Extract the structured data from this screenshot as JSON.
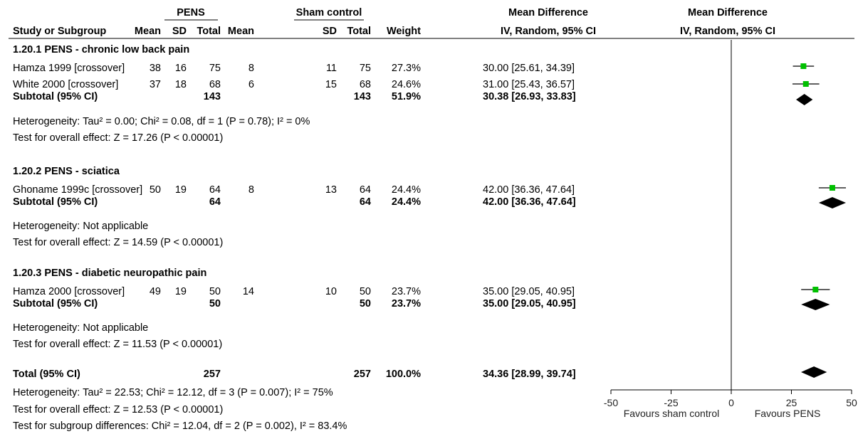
{
  "header": {
    "group1": "PENS",
    "group2": "Sham control",
    "md_title_1": "Mean Difference",
    "md_title_2": "Mean Difference",
    "col_study": "Study or Subgroup",
    "col_mean1": "Mean",
    "col_sd1": "SD",
    "col_total1": "Total",
    "col_mean2": "Mean",
    "col_sd2": "SD",
    "col_total2": "Total",
    "col_weight": "Weight",
    "col_method_1": "IV, Random, 95% CI",
    "col_method_2": "IV, Random, 95% CI"
  },
  "subgroups": [
    {
      "title": "1.20.1 PENS - chronic low back pain",
      "studies": [
        {
          "name": "Hamza 1999 [crossover]",
          "mean1": "38",
          "sd1": "16",
          "total1": "75",
          "mean2": "8",
          "sd2": "11",
          "total2": "75",
          "weight": "27.3%",
          "ci_text": "30.00 [25.61, 34.39]"
        },
        {
          "name": "White 2000 [crossover]",
          "mean1": "37",
          "sd1": "18",
          "total1": "68",
          "mean2": "6",
          "sd2": "15",
          "total2": "68",
          "weight": "24.6%",
          "ci_text": "31.00 [25.43, 36.57]"
        }
      ],
      "subtotal": {
        "label": "Subtotal (95% CI)",
        "total1": "143",
        "total2": "143",
        "weight": "51.9%",
        "ci_text": "30.38 [26.93, 33.83]"
      },
      "heterogeneity": "Heterogeneity: Tau² = 0.00; Chi² = 0.08, df = 1 (P = 0.78); I² = 0%",
      "overall": "Test for overall effect: Z = 17.26 (P < 0.00001)"
    },
    {
      "title": "1.20.2 PENS - sciatica",
      "studies": [
        {
          "name": "Ghoname 1999c [crossover]",
          "mean1": "50",
          "sd1": "19",
          "total1": "64",
          "mean2": "8",
          "sd2": "13",
          "total2": "64",
          "weight": "24.4%",
          "ci_text": "42.00 [36.36, 47.64]"
        }
      ],
      "subtotal": {
        "label": "Subtotal (95% CI)",
        "total1": "64",
        "total2": "64",
        "weight": "24.4%",
        "ci_text": "42.00 [36.36, 47.64]"
      },
      "heterogeneity": "Heterogeneity: Not applicable",
      "overall": "Test for overall effect: Z = 14.59 (P < 0.00001)"
    },
    {
      "title": "1.20.3 PENS - diabetic neuropathic pain",
      "studies": [
        {
          "name": "Hamza 2000 [crossover]",
          "mean1": "49",
          "sd1": "19",
          "total1": "50",
          "mean2": "14",
          "sd2": "10",
          "total2": "50",
          "weight": "23.7%",
          "ci_text": "35.00 [29.05, 40.95]"
        }
      ],
      "subtotal": {
        "label": "Subtotal (95% CI)",
        "total1": "50",
        "total2": "50",
        "weight": "23.7%",
        "ci_text": "35.00 [29.05, 40.95]"
      },
      "heterogeneity": "Heterogeneity: Not applicable",
      "overall": "Test for overall effect: Z = 11.53 (P < 0.00001)"
    }
  ],
  "total": {
    "label": "Total (95% CI)",
    "total1": "257",
    "total2": "257",
    "weight": "100.0%",
    "ci_text": "34.36 [28.99, 39.74]",
    "heterogeneity": "Heterogeneity: Tau² = 22.53; Chi² = 12.12, df = 3 (P = 0.007); I² = 75%",
    "overall": "Test for overall effect: Z = 12.53 (P < 0.00001)",
    "subgroup_diff": "Test for subgroup differences: Chi² = 12.04, df = 2 (P = 0.002), I² = 83.4%"
  },
  "axis": {
    "ticks": [
      -50,
      -25,
      0,
      25,
      50
    ],
    "tick_labels": [
      "-50",
      "-25",
      "0",
      "25",
      "50"
    ],
    "left_label": "Favours sham control",
    "right_label": "Favours PENS"
  },
  "colors": {
    "study_marker": "#00c000",
    "diamond": "#000000",
    "line": "#000000"
  },
  "chart_data": {
    "type": "forest",
    "effect_measure": "Mean Difference",
    "method": "IV, Random, 95% CI",
    "xlim": [
      -50,
      50
    ],
    "xticks": [
      -50,
      -25,
      0,
      25,
      50
    ],
    "studies": [
      {
        "name": "Hamza 1999 [crossover]",
        "subgroup": "1.20.1 PENS - chronic low back pain",
        "md": 30.0,
        "lo": 25.61,
        "hi": 34.39,
        "weight": 27.3
      },
      {
        "name": "White 2000 [crossover]",
        "subgroup": "1.20.1 PENS - chronic low back pain",
        "md": 31.0,
        "lo": 25.43,
        "hi": 36.57,
        "weight": 24.6
      },
      {
        "name": "Ghoname 1999c [crossover]",
        "subgroup": "1.20.2 PENS - sciatica",
        "md": 42.0,
        "lo": 36.36,
        "hi": 47.64,
        "weight": 24.4
      },
      {
        "name": "Hamza 2000 [crossover]",
        "subgroup": "1.20.3 PENS - diabetic neuropathic pain",
        "md": 35.0,
        "lo": 29.05,
        "hi": 40.95,
        "weight": 23.7
      }
    ],
    "subtotals": [
      {
        "subgroup": "1.20.1 PENS - chronic low back pain",
        "md": 30.38,
        "lo": 26.93,
        "hi": 33.83,
        "weight": 51.9
      },
      {
        "subgroup": "1.20.2 PENS - sciatica",
        "md": 42.0,
        "lo": 36.36,
        "hi": 47.64,
        "weight": 24.4
      },
      {
        "subgroup": "1.20.3 PENS - diabetic neuropathic pain",
        "md": 35.0,
        "lo": 29.05,
        "hi": 40.95,
        "weight": 23.7
      }
    ],
    "overall": {
      "md": 34.36,
      "lo": 28.99,
      "hi": 39.74,
      "weight": 100.0
    }
  }
}
